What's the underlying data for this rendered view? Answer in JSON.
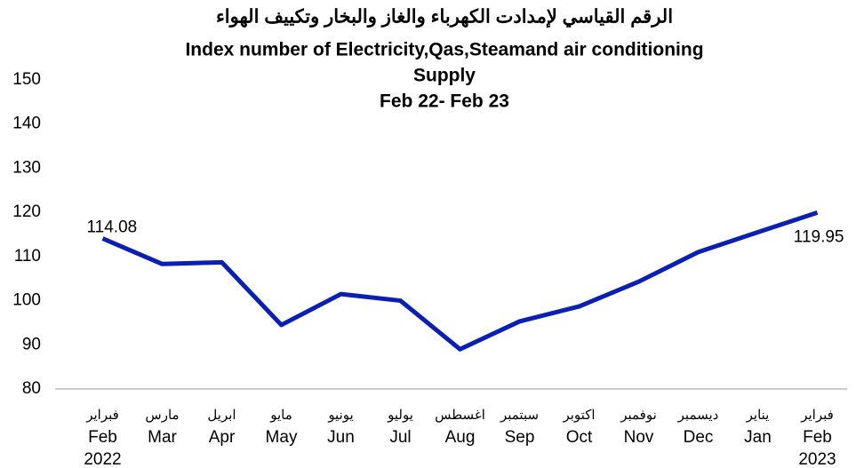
{
  "chart_data": {
    "type": "line",
    "title": [
      "الرقم القياسي لإمدادت الكهرباء والغاز والبخار وتكييف الهواء",
      "Index number of Electricity,Qas,Steamand air conditioning",
      "Supply",
      "Feb 22- Feb 23"
    ],
    "categories": [
      [
        "فبراير",
        "Feb",
        "2022"
      ],
      [
        "مارس",
        "Mar"
      ],
      [
        "ابريل",
        "Apr"
      ],
      [
        "مايو",
        "May"
      ],
      [
        "يونيو",
        "Jun"
      ],
      [
        "يوليو",
        "Jul"
      ],
      [
        "اغسطس",
        "Aug"
      ],
      [
        "سبتمبر",
        "Sep"
      ],
      [
        "اكتوبر",
        "Oct"
      ],
      [
        "نوفمبر",
        "Nov"
      ],
      [
        "ديسمبر",
        "Dec"
      ],
      [
        "يناير",
        "Jan"
      ],
      [
        "فبراير",
        "Feb",
        "2023"
      ]
    ],
    "values": [
      114.08,
      108.3,
      108.7,
      94.5,
      101.5,
      100.0,
      89.0,
      95.3,
      98.7,
      104.3,
      111.0,
      115.5,
      119.95
    ],
    "value_labels": [
      "114.08",
      null,
      null,
      null,
      null,
      null,
      null,
      null,
      null,
      null,
      null,
      null,
      "119.95"
    ],
    "color": "#0a1fb4",
    "ylim": [
      80,
      150
    ],
    "yticks": [
      80,
      90,
      100,
      110,
      120,
      130,
      140,
      150
    ]
  }
}
